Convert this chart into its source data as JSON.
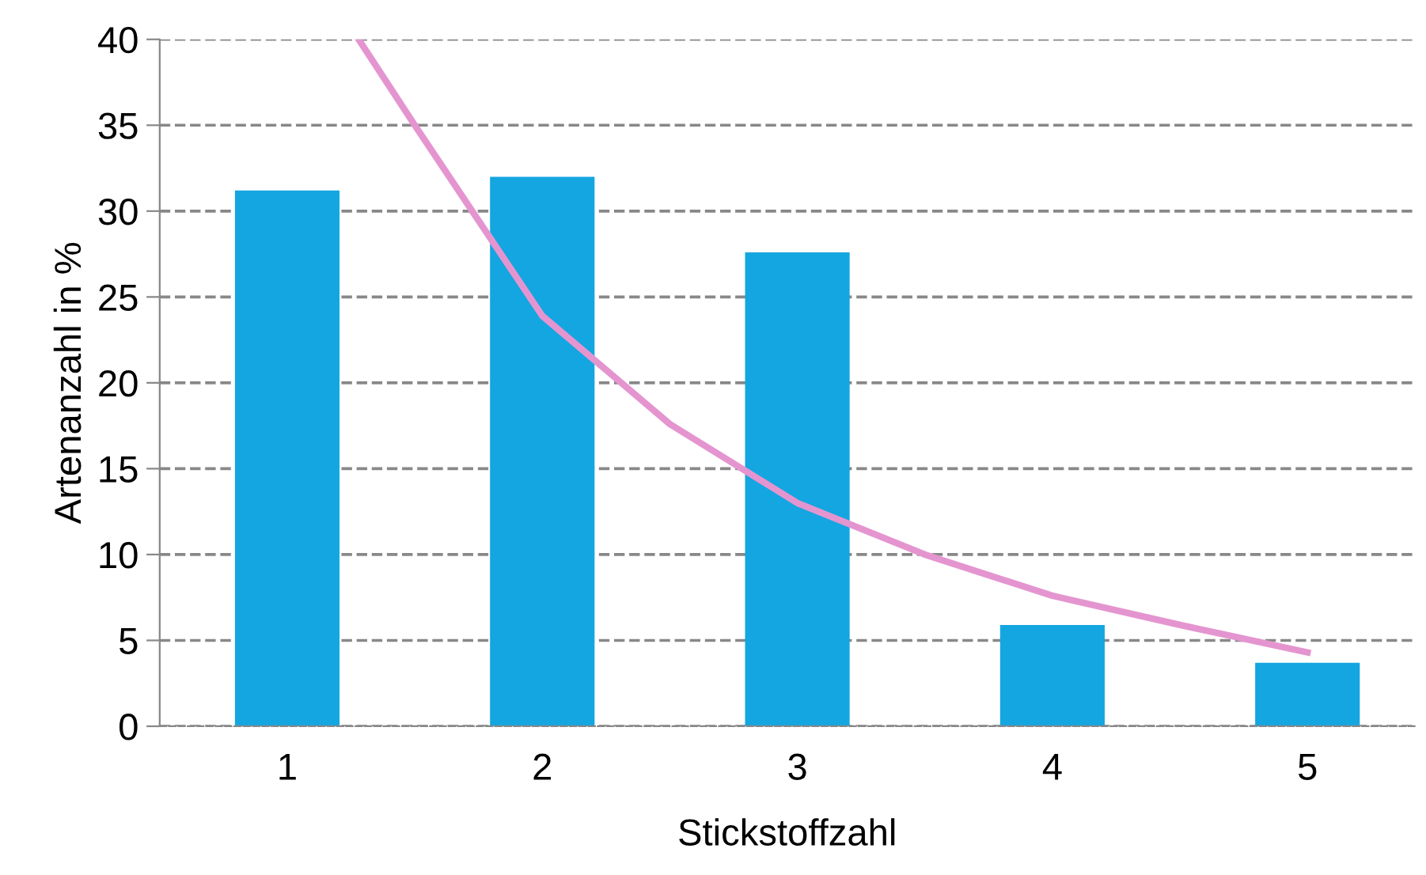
{
  "chart_data": {
    "type": "bar",
    "xlabel": "Stickstoffzahl",
    "ylabel": "Artenanzahl in %",
    "x": [
      1,
      2,
      3,
      4,
      5
    ],
    "xlim": [
      0.5,
      5.42
    ],
    "xticks": [
      1,
      2,
      3,
      4,
      5
    ],
    "ylim": [
      0,
      40
    ],
    "yticks": [
      0,
      5,
      10,
      15,
      20,
      25,
      30,
      35,
      40
    ],
    "grid": "y",
    "series": [
      {
        "color": "#14a6e0",
        "values": [
          31.2,
          32.0,
          27.6,
          5.9,
          3.7
        ]
      },
      {
        "type": "line",
        "color": "#e495d0",
        "x": [
          1.28,
          1.5,
          2,
          2.5,
          3,
          3.5,
          4,
          4.5,
          5
        ],
        "values": [
          40,
          35,
          23.9,
          17.6,
          13.0,
          10.0,
          7.6,
          5.9,
          4.3
        ]
      }
    ]
  }
}
